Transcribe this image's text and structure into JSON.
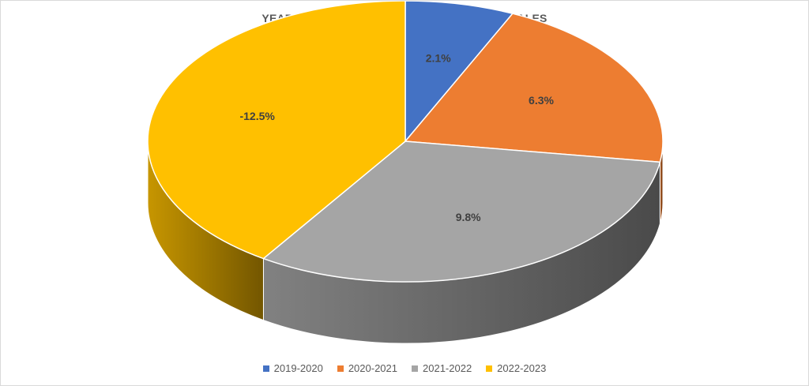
{
  "chart_data": {
    "type": "pie",
    "title": "YEAR-OVER-YEAR CHANGE, CONDOMINIUM SALES",
    "categories": [
      "2019-2020",
      "2020-2021",
      "2021-2022",
      "2022-2023"
    ],
    "values": [
      2.1,
      6.3,
      9.8,
      -12.5
    ],
    "data_labels": [
      "2.1%",
      "6.3%",
      "9.8%",
      "-12.5%"
    ],
    "colors": [
      "#4472C4",
      "#ED7D31",
      "#A5A5A5",
      "#FFC000"
    ],
    "style": "3d",
    "legend_position": "bottom"
  }
}
